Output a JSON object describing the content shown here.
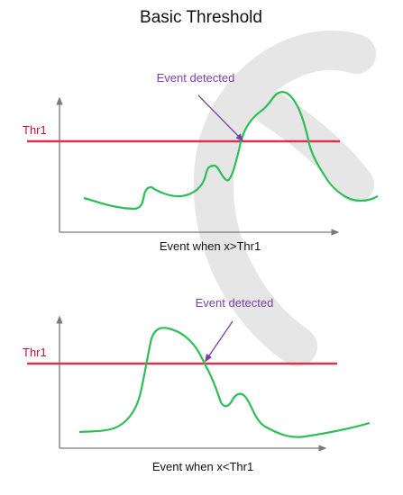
{
  "title": "Basic Threshold",
  "colors": {
    "threshold": "#d9334a",
    "signal": "#2bbf55",
    "annotation": "#7b3fa6",
    "axis": "#7a7a7a",
    "text": "#111111",
    "watermark": "#e2e2e2"
  },
  "panels": [
    {
      "threshold_label": "Thr1",
      "annotation_label": "Event detected",
      "caption": "Event when x>Thr1"
    },
    {
      "threshold_label": "Thr1",
      "annotation_label": "Event detected",
      "caption": "Event when x<Thr1"
    }
  ]
}
